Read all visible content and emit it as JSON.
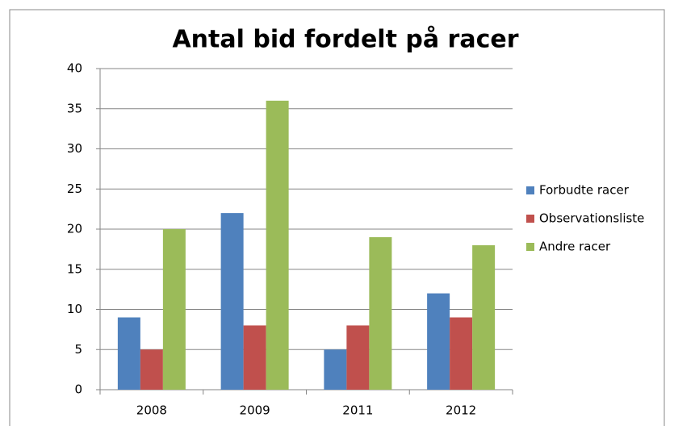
{
  "chart_data": {
    "type": "bar",
    "title": "Antal bid fordelt på racer",
    "categories": [
      "2008",
      "2009",
      "2011",
      "2012"
    ],
    "series": [
      {
        "name": "Forbudte racer",
        "color": "#4f81bd",
        "values": [
          9,
          22,
          5,
          12
        ]
      },
      {
        "name": "Observationsliste",
        "color": "#c0504d",
        "values": [
          5,
          8,
          8,
          9
        ]
      },
      {
        "name": "Andre racer",
        "color": "#9bbb59",
        "values": [
          20,
          36,
          19,
          18
        ]
      }
    ],
    "ylim": [
      0,
      40
    ],
    "yticks": [
      0,
      5,
      10,
      15,
      20,
      25,
      30,
      35,
      40
    ],
    "grid": true,
    "legend": "right"
  }
}
